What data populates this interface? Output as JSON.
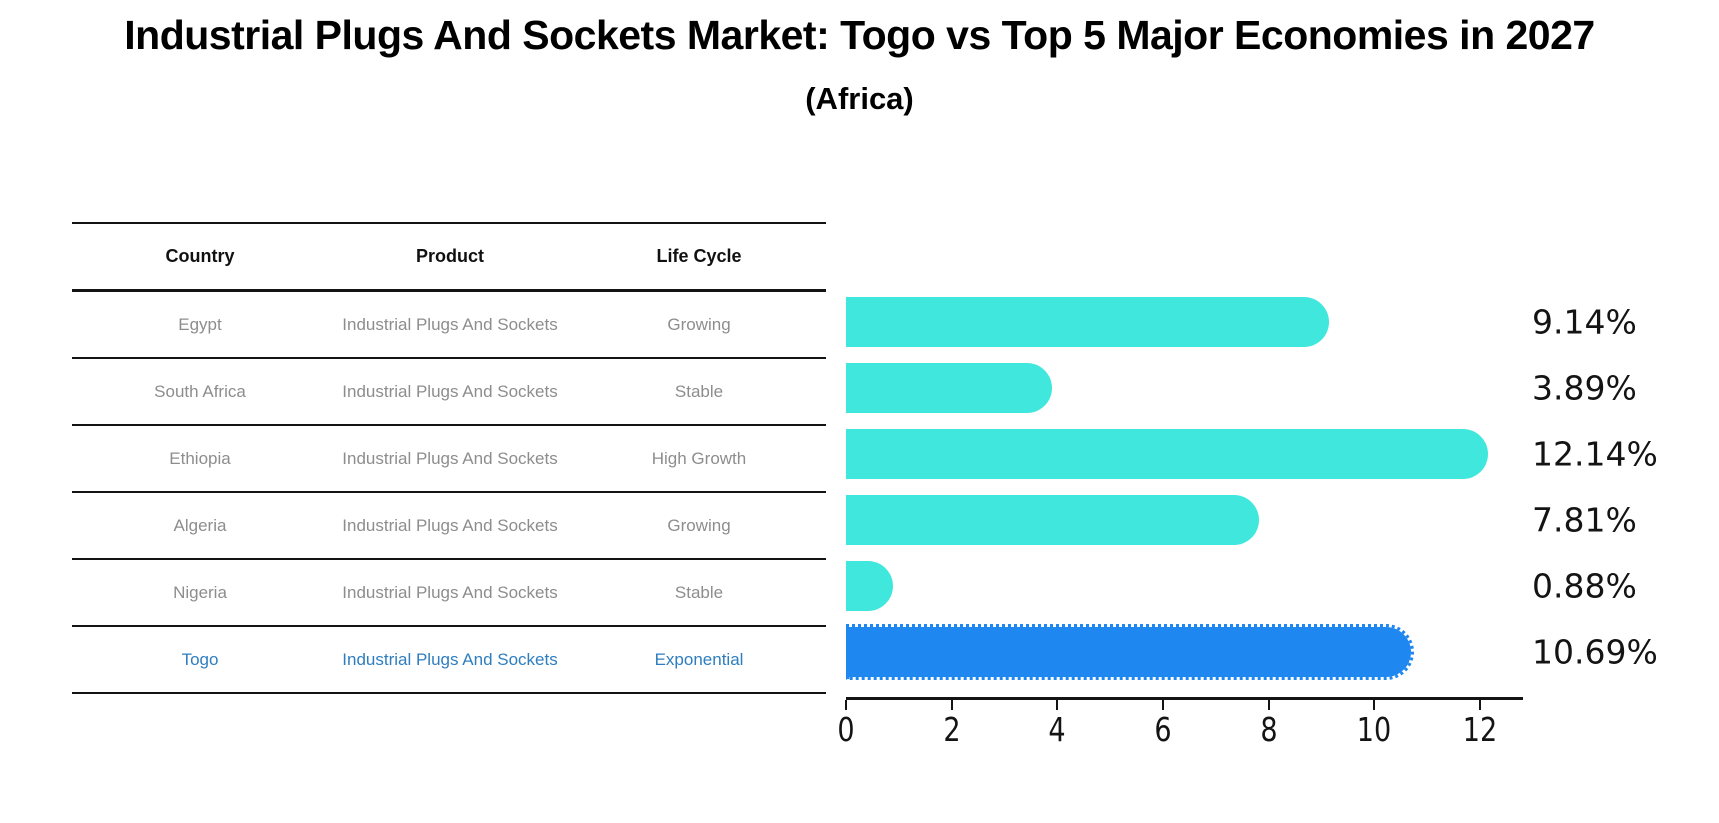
{
  "header": {
    "title": "Industrial Plugs And Sockets Market: Togo vs Top 5 Major Economies in 2027",
    "subtitle": "(Africa)"
  },
  "table": {
    "columns": [
      "Country",
      "Product",
      "Life Cycle"
    ],
    "rows": [
      {
        "country": "Egypt",
        "product": "Industrial Plugs And Sockets",
        "life_cycle": "Growing",
        "highlight": false
      },
      {
        "country": "South Africa",
        "product": "Industrial Plugs And Sockets",
        "life_cycle": "Stable",
        "highlight": false
      },
      {
        "country": "Ethiopia",
        "product": "Industrial Plugs And Sockets",
        "life_cycle": "High Growth",
        "highlight": false
      },
      {
        "country": "Algeria",
        "product": "Industrial Plugs And Sockets",
        "life_cycle": "Growing",
        "highlight": false
      },
      {
        "country": "Nigeria",
        "product": "Industrial Plugs And Sockets",
        "life_cycle": "Stable",
        "highlight": false
      },
      {
        "country": "Togo",
        "product": "Industrial Plugs And Sockets",
        "life_cycle": "Exponential",
        "highlight": true
      }
    ]
  },
  "chart_data": {
    "type": "bar",
    "orientation": "horizontal",
    "title": "Industrial Plugs And Sockets Market: Togo vs Top 5 Major Economies in 2027 (Africa)",
    "categories": [
      "Egypt",
      "South Africa",
      "Ethiopia",
      "Algeria",
      "Nigeria",
      "Togo"
    ],
    "values": [
      9.14,
      3.89,
      12.14,
      7.81,
      0.88,
      10.69
    ],
    "value_labels": [
      "9.14%",
      "3.89%",
      "12.14%",
      "7.81%",
      "0.88%",
      "10.69%"
    ],
    "xlabel": "",
    "ylabel": "",
    "xlim": [
      0,
      12.81
    ],
    "xticks": [
      "0",
      "2",
      "4",
      "6",
      "8",
      "10",
      "12"
    ],
    "grid": false,
    "legend": null,
    "highlight_index": 5,
    "colors": {
      "bar": "#40E7DC",
      "highlight_bar": "#1E87F0"
    }
  },
  "colors": {
    "background": "#FFFFFF",
    "title_text": "#000000",
    "table_line": "#141414",
    "table_header_text": "#111111",
    "table_row_text": "#8D8D8D",
    "highlight_row_text": "#2E7EBF",
    "axis": "#141414",
    "value_label_text": "#141414"
  }
}
